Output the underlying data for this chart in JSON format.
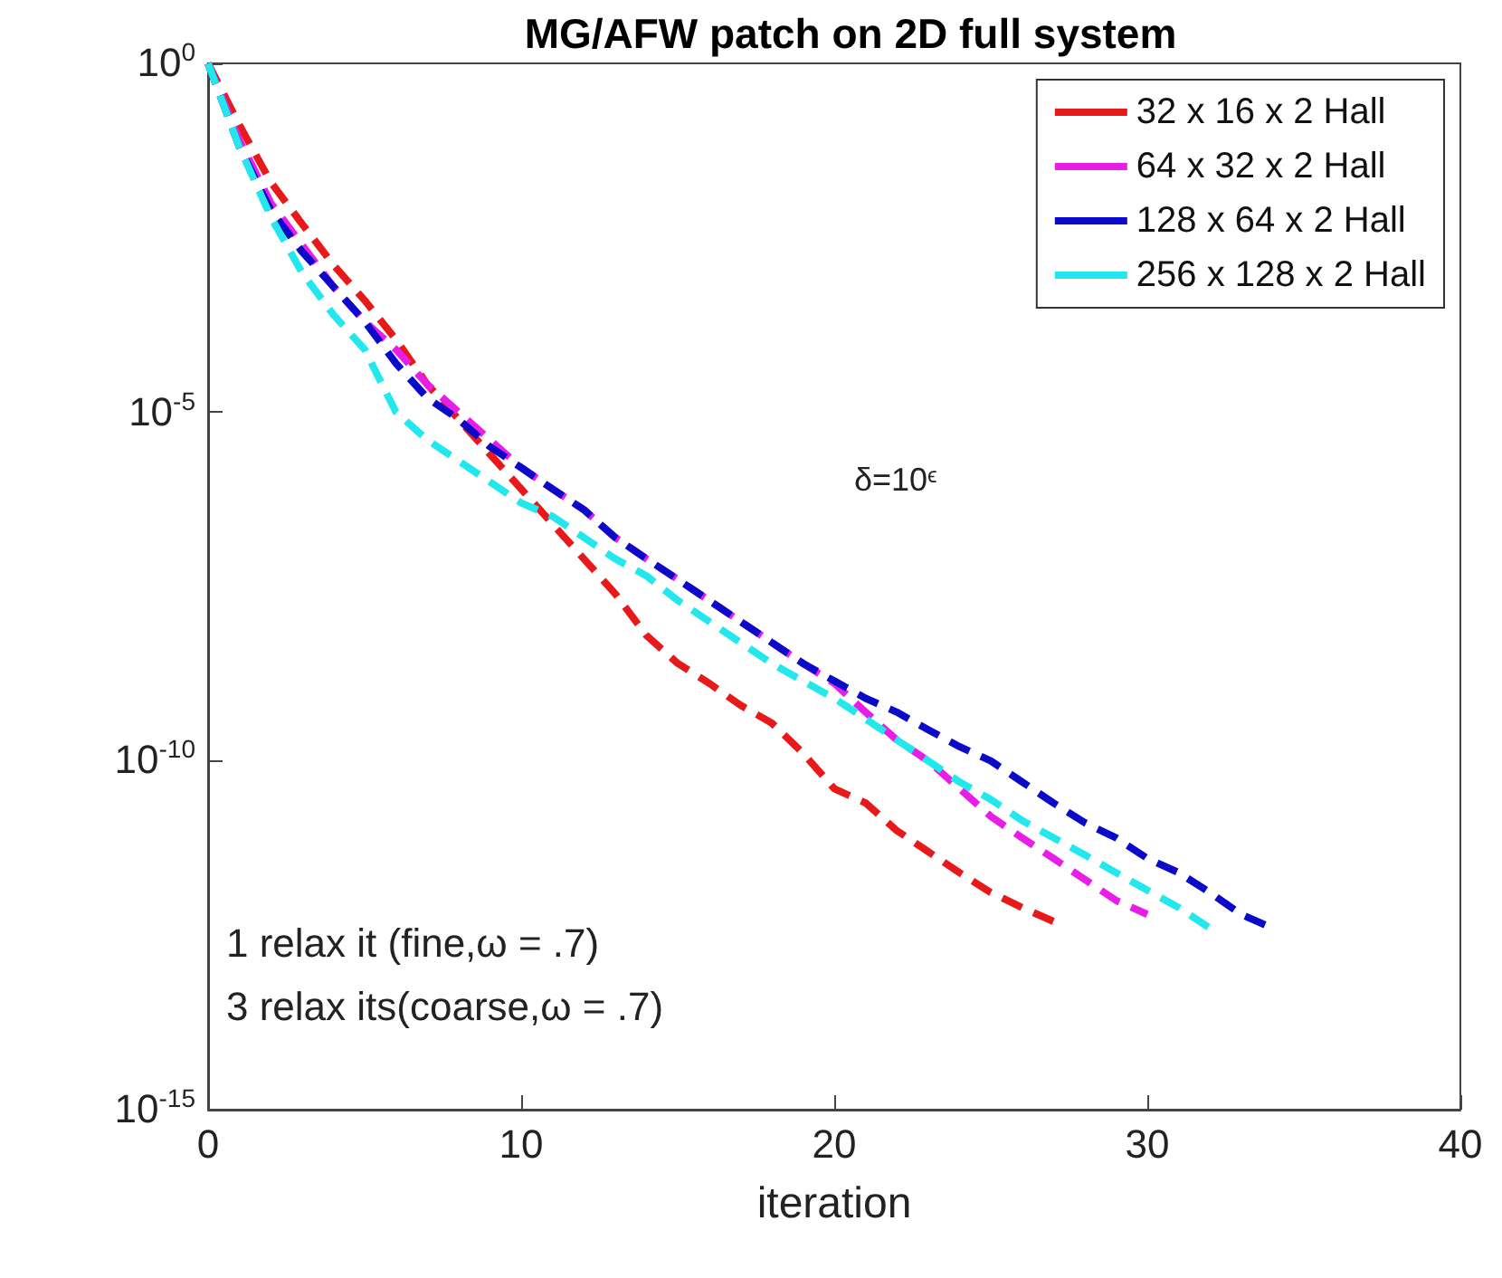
{
  "chart_data": {
    "type": "line",
    "title": "MG/AFW patch on 2D full system",
    "xlabel": "iteration",
    "xlim": [
      0,
      40
    ],
    "xticks": [
      0,
      10,
      20,
      30,
      40
    ],
    "ylim": [
      1e-15,
      1
    ],
    "yticks": [
      {
        "value": 1e-15,
        "label": "10$^{-15}$"
      },
      {
        "value": 1e-10,
        "label": "10$^{-10}$"
      },
      {
        "value": 1e-05,
        "label": "10$^{-5}$"
      },
      {
        "value": 1,
        "label": "10$^{0}$"
      }
    ],
    "log": "y",
    "grid": false,
    "legend": "top right",
    "marker": "none",
    "line_style": "dashed",
    "annotations": [
      "δ=10$^{ϵ}$",
      "1 relax it (fine,ω = .7)",
      "3 relax its(coarse,ω = .7)"
    ],
    "series": [
      {
        "name": "32 x 16 x 2 Hall",
        "color": "#e8191a",
        "x": [
          0,
          1,
          2,
          3,
          4,
          5,
          6,
          7,
          8,
          9,
          10,
          11,
          12,
          13,
          14,
          15,
          16,
          17,
          18,
          19,
          20,
          21,
          22,
          23,
          24,
          25,
          26,
          27
        ],
        "values": [
          1,
          0.13,
          0.02,
          0.005,
          0.0013,
          0.0004,
          0.00011,
          2.5e-05,
          7.9e-06,
          2.5e-06,
          7.9e-07,
          2.5e-07,
          7.9e-08,
          2.5e-08,
          6.3e-09,
          2.5e-09,
          1.3e-09,
          6.3e-10,
          3.5e-10,
          1.3e-10,
          4e-11,
          2.5e-11,
          1e-11,
          5e-12,
          2.5e-12,
          1.3e-12,
          7.9e-13,
          5e-13
        ]
      },
      {
        "name": "64 x 32 x 2 Hall",
        "color": "#e81ee8",
        "x": [
          0,
          1,
          2,
          3,
          4,
          5,
          6,
          7,
          8,
          9,
          10,
          11,
          12,
          13,
          14,
          15,
          16,
          17,
          18,
          19,
          20,
          21,
          22,
          23,
          24,
          25,
          26,
          27,
          28,
          29,
          30
        ],
        "values": [
          1,
          0.079,
          0.01,
          0.0025,
          0.00063,
          0.0002,
          7.9e-05,
          2.5e-05,
          1e-05,
          4e-06,
          1.6e-06,
          7.9e-07,
          4e-07,
          1.6e-07,
          7.9e-08,
          4e-08,
          2e-08,
          1e-08,
          5e-09,
          2.5e-09,
          1.3e-09,
          5e-10,
          2e-10,
          1e-10,
          4e-11,
          1.6e-11,
          7.9e-12,
          4e-12,
          2e-12,
          1e-12,
          6.3e-13
        ]
      },
      {
        "name": "128 x 64 x 2 Hall",
        "color": "#0a0ac8",
        "x": [
          0,
          1,
          2,
          3,
          4,
          5,
          6,
          7,
          8,
          9,
          10,
          11,
          12,
          13,
          14,
          15,
          16,
          17,
          18,
          19,
          20,
          21,
          22,
          23,
          24,
          25,
          26,
          27,
          28,
          29,
          30,
          31,
          32,
          33,
          34
        ],
        "values": [
          1,
          0.063,
          0.0079,
          0.002,
          0.00063,
          0.0002,
          5e-05,
          1.6e-05,
          7.9e-06,
          3.2e-06,
          1.6e-06,
          7.9e-07,
          4e-07,
          1.6e-07,
          7.9e-08,
          4e-08,
          2e-08,
          1e-08,
          5e-09,
          2.5e-09,
          1.4e-09,
          7.9e-10,
          5e-10,
          2.8e-10,
          1.6e-10,
          1e-10,
          5e-11,
          2.5e-11,
          1.3e-11,
          7.9e-12,
          4e-12,
          2.5e-12,
          1.3e-12,
          6.3e-13,
          4e-13
        ]
      },
      {
        "name": "256 x 128 x 2 Hall",
        "color": "#22e8ee",
        "x": [
          0,
          1,
          2,
          3,
          4,
          5,
          6,
          7,
          8,
          9,
          10,
          11,
          12,
          13,
          14,
          15,
          16,
          17,
          18,
          19,
          20,
          21,
          22,
          23,
          24,
          25,
          26,
          27,
          28,
          29,
          30,
          31,
          32
        ],
        "values": [
          1,
          0.063,
          0.0063,
          0.001,
          0.00025,
          7.9e-05,
          1e-05,
          4e-06,
          2e-06,
          1e-06,
          5e-07,
          3.2e-07,
          1.6e-07,
          7.9e-08,
          4.5e-08,
          2e-08,
          1e-08,
          5e-09,
          2.5e-09,
          1.4e-09,
          7.9e-10,
          4e-10,
          2e-10,
          1e-10,
          5e-11,
          2.8e-11,
          1.4e-11,
          7.9e-12,
          4.5e-12,
          2.5e-12,
          1.4e-12,
          7.9e-13,
          4e-13
        ]
      }
    ]
  }
}
